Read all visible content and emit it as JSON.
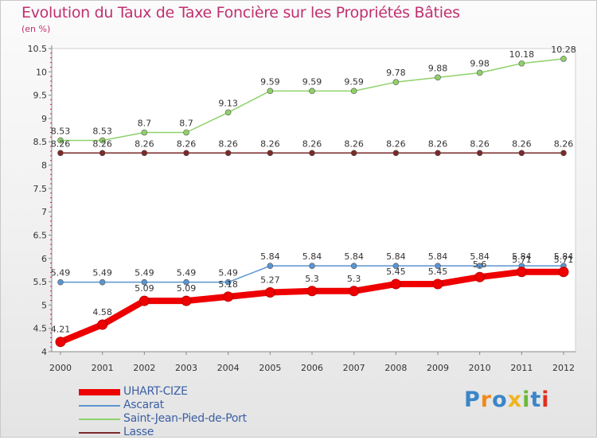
{
  "title": "Evolution du Taux de Taxe Foncière sur les Propriétés Bâties",
  "subtitle": "(en %)",
  "chart_data": {
    "type": "line",
    "title": "Evolution du Taux de Taxe Foncière sur les Propriétés Bâties",
    "ylabel": "(en %)",
    "xlabel": "",
    "ylim": [
      4,
      10.5
    ],
    "yticks": [
      "4",
      "4.5",
      "5",
      "5.5",
      "6",
      "6.5",
      "7",
      "7.5",
      "8",
      "8.5",
      "9",
      "9.5",
      "10",
      "10.5"
    ],
    "categories": [
      "2000",
      "2001",
      "2002",
      "2003",
      "2004",
      "2005",
      "2006",
      "2007",
      "2008",
      "2009",
      "2010",
      "2011",
      "2012"
    ],
    "series": [
      {
        "name": "Saint-Jean-Pied-de-Port",
        "color": "#8fd16a",
        "values": [
          8.53,
          8.53,
          8.7,
          8.7,
          9.13,
          9.59,
          9.59,
          9.59,
          9.78,
          9.88,
          9.98,
          10.18,
          10.28
        ],
        "labels": [
          "8.53",
          "8.53",
          "8.7",
          "8.7",
          "9.13",
          "9.59",
          "9.59",
          "9.59",
          "9.78",
          "9.88",
          "9.98",
          "10.18",
          "10.28"
        ]
      },
      {
        "name": "Lasse",
        "color": "#7b2a2a",
        "values": [
          8.26,
          8.26,
          8.26,
          8.26,
          8.26,
          8.26,
          8.26,
          8.26,
          8.26,
          8.26,
          8.26,
          8.26,
          8.26
        ],
        "labels": [
          "8.26",
          "8.26",
          "8.26",
          "8.26",
          "8.26",
          "8.26",
          "8.26",
          "8.26",
          "8.26",
          "8.26",
          "8.26",
          "8.26",
          "8.26"
        ]
      },
      {
        "name": "Ascarat",
        "color": "#5b95d0",
        "values": [
          5.49,
          5.49,
          5.49,
          5.49,
          5.49,
          5.84,
          5.84,
          5.84,
          5.84,
          5.84,
          5.84,
          5.84,
          5.84
        ],
        "labels": [
          "5.49",
          "5.49",
          "5.49",
          "5.49",
          "5.49",
          "5.84",
          "5.84",
          "5.84",
          "5.84",
          "5.84",
          "5.84",
          "5.84",
          "5.84"
        ]
      },
      {
        "name": "UHART-CIZE",
        "color": "#ee0000",
        "values": [
          4.21,
          4.58,
          5.09,
          5.09,
          5.18,
          5.27,
          5.3,
          5.3,
          5.45,
          5.45,
          5.6,
          5.71,
          5.71
        ],
        "labels": [
          "4.21",
          "4.58",
          "5.09",
          "5.09",
          "5.18",
          "5.27",
          "5.3",
          "5.3",
          "5.45",
          "5.45",
          "5.6",
          "5.71",
          "5.71"
        ]
      }
    ],
    "legend": [
      "UHART-CIZE",
      "Ascarat",
      "Saint-Jean-Pied-de-Port",
      "Lasse"
    ]
  },
  "logo": {
    "letters": [
      "P",
      "r",
      "o",
      "x",
      "i",
      "t",
      "i"
    ],
    "colors": [
      "#3a86c8",
      "#f08a1e",
      "#3a86c8",
      "#f0b41e",
      "#6cb83a",
      "#3a86c8",
      "#e0301e"
    ]
  }
}
